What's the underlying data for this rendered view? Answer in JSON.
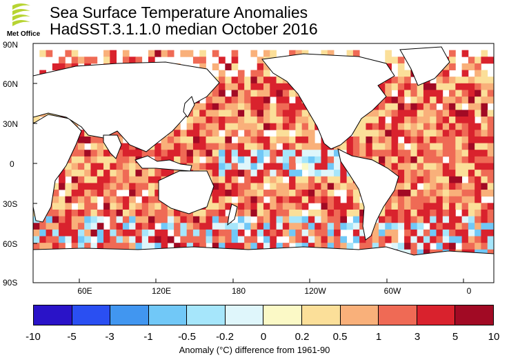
{
  "header": {
    "title_line1": "Sea Surface Temperature Anomalies",
    "title_line2": "HadSST.3.1.1.0 median October 2016",
    "logo_text": "Met Office"
  },
  "map": {
    "projection": "equirectangular, centred on 180",
    "lat_labels": [
      "90N",
      "60N",
      "30N",
      "0",
      "30S",
      "60S",
      "90S"
    ],
    "lon_labels": [
      "60E",
      "120E",
      "180",
      "120W",
      "60W",
      "0"
    ],
    "land_color": "#ffffff",
    "coastline_color": "#000000"
  },
  "colorbar": {
    "ticks": [
      "-10",
      "-5",
      "-3",
      "-1",
      "-0.5",
      "-0.2",
      "0",
      "0.2",
      "0.5",
      "1",
      "3",
      "5",
      "10"
    ],
    "colors": [
      "#2a13c8",
      "#2a4ff2",
      "#4196f0",
      "#71c8f7",
      "#a6e6fb",
      "#dff6fb",
      "#fbf9c6",
      "#fbdf99",
      "#f9b07a",
      "#ef6a55",
      "#d9222d",
      "#a10a24"
    ],
    "caption": "Anomaly (°C) difference from 1961-90"
  }
}
